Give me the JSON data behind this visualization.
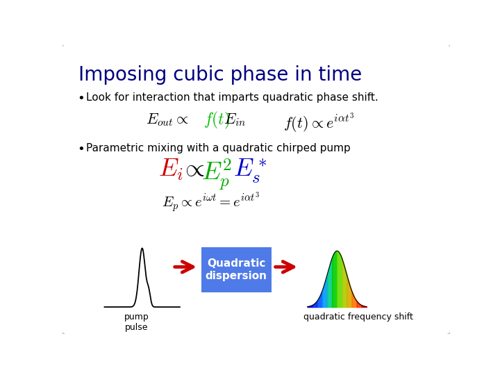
{
  "title": "Imposing cubic phase in time",
  "title_color": "#000080",
  "title_fontsize": 20,
  "bullet1": "Look for interaction that imparts quadratic phase shift.",
  "bullet2": "Parametric mixing with a quadratic chirped pump",
  "box_label": "Quadratic\ndispersion",
  "bottom_label1": "quadratic frequency shift",
  "bottom_label2": "pump\npulse",
  "bg_color": "#ffffff",
  "box_color": "#4f7be8",
  "arrow_color": "#cc0000",
  "bullet_color": "#333333",
  "text_color": "#000000"
}
